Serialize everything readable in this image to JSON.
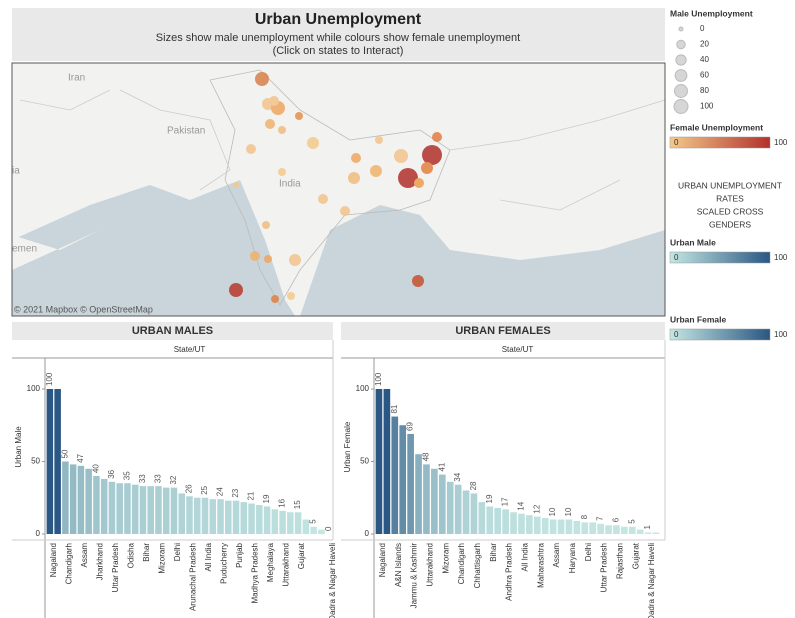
{
  "header": {
    "title": "Urban Unemployment",
    "subtitle": "Sizes show male unemployment while colours show female unemployment",
    "note": "(Click on states to Interact)"
  },
  "map": {
    "labels": [
      "Iran",
      "Pakistan",
      "India",
      "emen",
      "ia"
    ],
    "attribution": "© 2021 Mapbox © OpenStreetMap"
  },
  "legends": {
    "male_size": {
      "title": "Male Unemployment",
      "values": [
        0,
        20,
        40,
        60,
        80,
        100
      ]
    },
    "female_color": {
      "title": "Female Unemployment",
      "min": 0,
      "max": 100,
      "colors": [
        "#f5c98b",
        "#b2312b"
      ]
    },
    "note": [
      "URBAN UNEMPLOYMENT",
      "RATES",
      "SCALED CROSS",
      "GENDERS"
    ],
    "urban_male": {
      "title": "Urban Male",
      "min": 0,
      "max": 100,
      "colors": [
        "#c4e7e3",
        "#2a5783"
      ]
    },
    "urban_female": {
      "title": "Urban Female",
      "min": 0,
      "max": 100,
      "colors": [
        "#c4e7e3",
        "#2a5783"
      ]
    }
  },
  "chart_data": [
    {
      "type": "bar",
      "title": "URBAN MALES",
      "column_header": "State/UT",
      "y_label": "Urban Male",
      "categories": [
        "Nagaland",
        null,
        "Chandigarh",
        null,
        "Assam",
        null,
        "Jharkhand",
        null,
        "Uttar Pradesh",
        null,
        "Odisha",
        null,
        "Bihar",
        null,
        "Mizoram",
        null,
        "Delhi",
        null,
        "Arunachal Pradesh",
        null,
        "All India",
        null,
        "Puducherry",
        null,
        "Punjab",
        null,
        "Madhya Pradesh",
        null,
        "Meghalaya",
        null,
        "Uttarakhand",
        null,
        "Gujarat",
        null,
        null,
        null,
        "Dadra & Nagar Haveli"
      ],
      "values": [
        100,
        100,
        50,
        48,
        47,
        45,
        40,
        38,
        36,
        35,
        35,
        34,
        33,
        33,
        33,
        32,
        32,
        28,
        26,
        25,
        25,
        24,
        24,
        23,
        23,
        22,
        21,
        20,
        19,
        17,
        16,
        15,
        15,
        10,
        5,
        3,
        0
      ],
      "value_labels": [
        "100",
        null,
        "50",
        null,
        "47",
        null,
        "40",
        null,
        "36",
        null,
        "35",
        null,
        "33",
        null,
        "33",
        null,
        "32",
        null,
        "26",
        null,
        "25",
        null,
        "24",
        null,
        "23",
        null,
        "21",
        null,
        "19",
        null,
        "16",
        null,
        "15",
        null,
        "5",
        null,
        "0"
      ],
      "ylim": [
        0,
        120
      ],
      "yticks": [
        0,
        50,
        100
      ],
      "color_range": [
        "#c4e7e3",
        "#2a5783"
      ]
    },
    {
      "type": "bar",
      "title": "URBAN FEMALES",
      "column_header": "State/UT",
      "y_label": "Urban Female",
      "categories": [
        "Nagaland",
        null,
        "A&N Islands",
        null,
        "Jammu & Kashmir",
        null,
        "Uttarakhand",
        null,
        "Mizoram",
        null,
        "Chandigarh",
        null,
        "Chhattisgarh",
        null,
        "Bihar",
        null,
        "Andhra Pradesh",
        null,
        "All India",
        null,
        "Maharashtra",
        null,
        "Assam",
        null,
        "Haryana",
        null,
        "Delhi",
        null,
        "Uttar Pradesh",
        null,
        "Rajasthan",
        null,
        "Gujarat",
        null,
        "Dadra & Nagar Haveli",
        null
      ],
      "values": [
        100,
        100,
        81,
        75,
        69,
        55,
        48,
        45,
        41,
        36,
        34,
        30,
        28,
        22,
        19,
        18,
        17,
        15,
        14,
        13,
        12,
        11,
        10,
        10,
        10,
        9,
        8,
        8,
        7,
        6,
        6,
        5,
        5,
        3,
        1,
        1
      ],
      "value_labels": [
        "100",
        null,
        "81",
        null,
        "69",
        null,
        "48",
        null,
        "41",
        null,
        "34",
        null,
        "28",
        null,
        "19",
        null,
        "17",
        null,
        "14",
        null,
        "12",
        null,
        "10",
        null,
        "10",
        null,
        "8",
        null,
        "7",
        null,
        "6",
        null,
        "5",
        null,
        "1",
        null
      ],
      "ylim": [
        0,
        120
      ],
      "yticks": [
        0,
        50,
        100
      ],
      "color_range": [
        "#c4e7e3",
        "#2a5783"
      ]
    }
  ]
}
